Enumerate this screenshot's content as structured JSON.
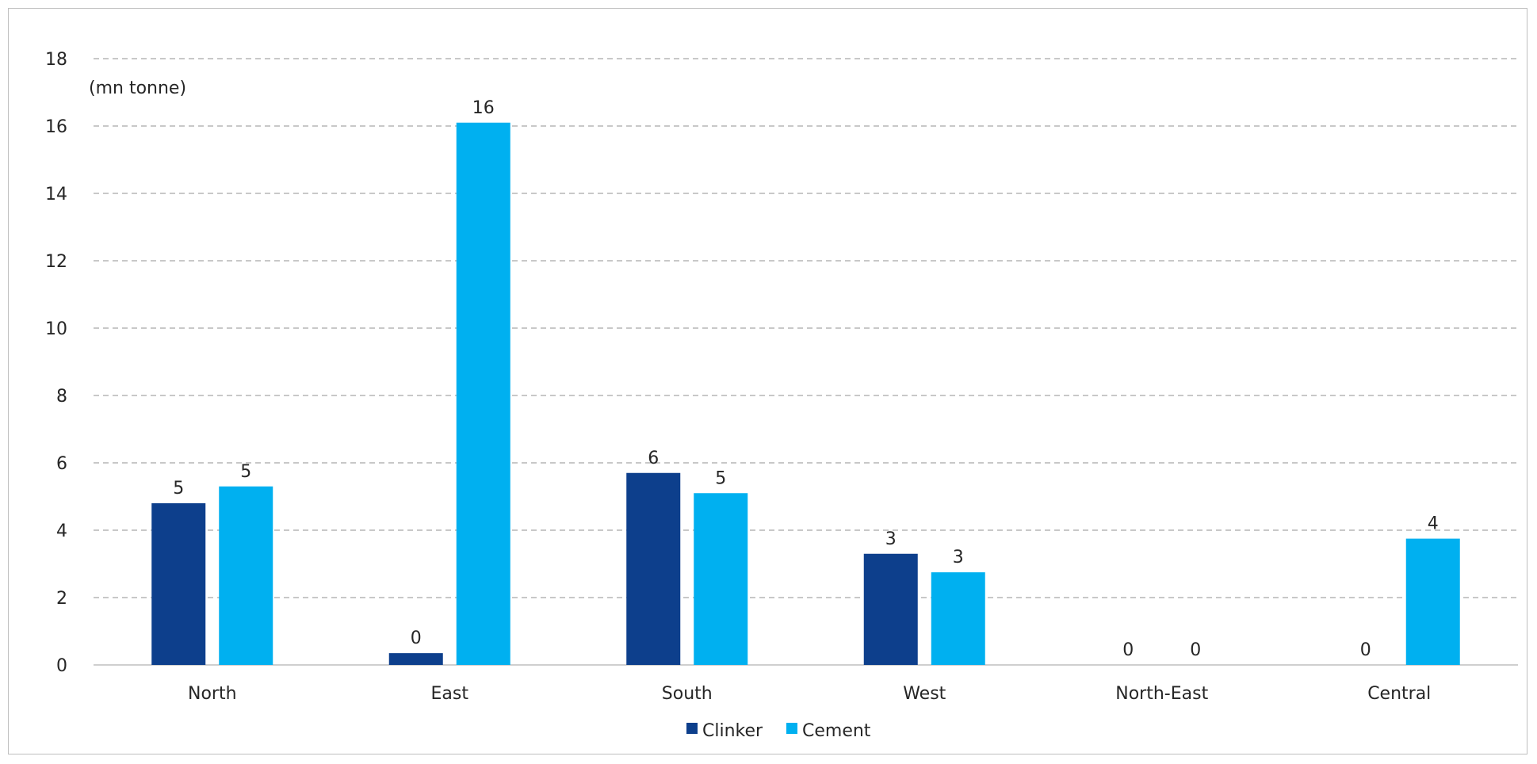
{
  "chart_data": {
    "type": "bar",
    "unit_label": "(mn tonne)",
    "categories": [
      "North",
      "East",
      "South",
      "West",
      "North-East",
      "Central"
    ],
    "series": [
      {
        "name": "Clinker",
        "color": "#0d3f8c",
        "values": [
          4.8,
          0.35,
          5.7,
          3.3,
          0,
          0
        ],
        "labels": [
          "5",
          "0",
          "6",
          "3",
          "0",
          "0"
        ]
      },
      {
        "name": "Cement",
        "color": "#00b0f0",
        "values": [
          5.3,
          16.1,
          5.1,
          2.75,
          0,
          3.75
        ],
        "labels": [
          "5",
          "16",
          "5",
          "3",
          "0",
          "4"
        ]
      }
    ],
    "ylim": [
      0,
      18
    ],
    "yticks": [
      0,
      2,
      4,
      6,
      8,
      10,
      12,
      14,
      16,
      18
    ],
    "grid": true,
    "legend_position": "bottom"
  }
}
